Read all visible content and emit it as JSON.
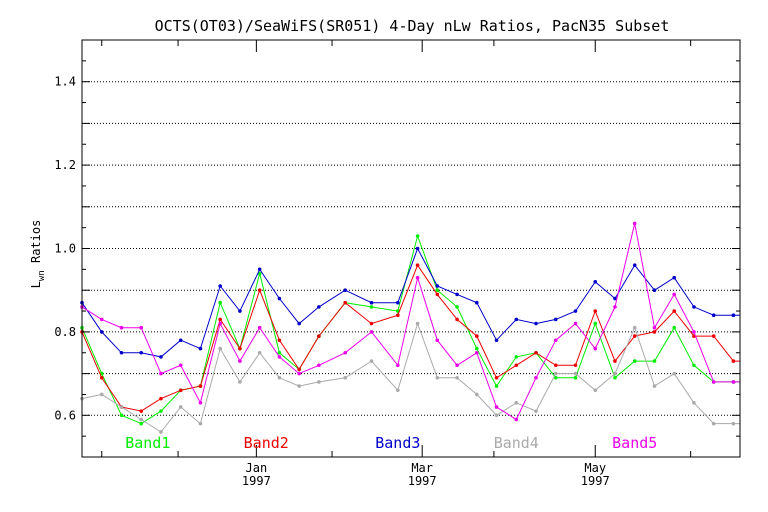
{
  "chart_data": {
    "type": "line",
    "title": "OCTS(OT03)/SeaWiFS(SR051) 4-Day nLw Ratios, PacN35 Subset",
    "ylabel_main": "L",
    "ylabel_sub": "wn",
    "ylabel_rest": " Ratios",
    "xlim": [
      0,
      100
    ],
    "ylim": [
      0.5,
      1.5
    ],
    "yticks": [
      {
        "v": 0.6,
        "label": "0.6"
      },
      {
        "v": 0.8,
        "label": "0.8"
      },
      {
        "v": 1.0,
        "label": "1.0"
      },
      {
        "v": 1.2,
        "label": "1.2"
      },
      {
        "v": 1.4,
        "label": "1.4"
      }
    ],
    "ygrid": [
      0.6,
      0.7,
      0.8,
      0.9,
      1.0,
      1.1,
      1.2,
      1.3,
      1.4
    ],
    "xmajor": [
      {
        "v": 26.5,
        "month": "Jan",
        "year": "1997"
      },
      {
        "v": 51.7,
        "month": "Mar",
        "year": "1997"
      },
      {
        "v": 78.0,
        "month": "May",
        "year": "1997"
      }
    ],
    "xminor": [
      3.0,
      14.6,
      38.0,
      62.6,
      92.5
    ],
    "x": [
      0,
      3,
      6,
      9,
      12,
      15,
      18,
      21,
      24,
      27,
      30,
      33,
      36,
      40,
      44,
      48,
      51,
      54,
      57,
      60,
      63,
      66,
      69,
      72,
      75,
      78,
      81,
      84,
      87,
      90,
      93,
      96,
      99,
      100
    ],
    "series": [
      {
        "name": "Band1",
        "color": "#00ee00",
        "values": [
          0.81,
          0.7,
          0.6,
          0.58,
          0.61,
          0.66,
          0.67,
          0.87,
          0.76,
          0.94,
          0.75,
          0.71,
          0.79,
          0.87,
          0.86,
          0.85,
          1.03,
          0.9,
          0.86,
          0.76,
          0.67,
          0.74,
          0.75,
          0.69,
          0.69,
          0.82,
          0.69,
          0.73,
          0.73,
          0.81,
          0.72,
          0.68,
          0.68,
          0.68
        ]
      },
      {
        "name": "Band2",
        "color": "#ee0000",
        "values": [
          0.8,
          0.69,
          0.62,
          0.61,
          0.64,
          0.66,
          0.67,
          0.83,
          0.76,
          0.9,
          0.78,
          0.71,
          0.79,
          0.87,
          0.82,
          0.84,
          0.96,
          0.89,
          0.83,
          0.79,
          0.69,
          0.72,
          0.75,
          0.72,
          0.72,
          0.85,
          0.73,
          0.79,
          0.8,
          0.85,
          0.79,
          0.79,
          0.73,
          0.73
        ]
      },
      {
        "name": "Band3",
        "color": "#0000cc",
        "values": [
          0.87,
          0.8,
          0.75,
          0.75,
          0.74,
          0.78,
          0.76,
          0.91,
          0.85,
          0.95,
          0.88,
          0.82,
          0.86,
          0.9,
          0.87,
          0.87,
          1.0,
          0.91,
          0.89,
          0.87,
          0.78,
          0.83,
          0.82,
          0.83,
          0.85,
          0.92,
          0.88,
          0.96,
          0.9,
          0.93,
          0.86,
          0.84,
          0.84,
          0.84
        ]
      },
      {
        "name": "Band4",
        "color": "#aaaaaa",
        "values": [
          0.64,
          0.65,
          0.62,
          0.59,
          0.56,
          0.62,
          0.58,
          0.76,
          0.68,
          0.75,
          0.69,
          0.67,
          0.68,
          0.69,
          0.73,
          0.66,
          0.82,
          0.69,
          0.69,
          0.65,
          0.6,
          0.63,
          0.61,
          0.7,
          0.7,
          0.66,
          0.7,
          0.81,
          0.67,
          0.7,
          0.63,
          0.58,
          0.58,
          0.58
        ]
      },
      {
        "name": "Band5",
        "color": "#ee00ee",
        "values": [
          0.86,
          0.83,
          0.81,
          0.81,
          0.7,
          0.72,
          0.63,
          0.82,
          0.73,
          0.81,
          0.74,
          0.7,
          0.72,
          0.75,
          0.8,
          0.72,
          0.93,
          0.78,
          0.72,
          0.75,
          0.62,
          0.59,
          0.69,
          0.78,
          0.82,
          0.76,
          0.86,
          1.06,
          0.81,
          0.89,
          0.8,
          0.68,
          0.68,
          0.68
        ]
      }
    ],
    "legend": [
      {
        "name": "Band1",
        "color": "#00ee00",
        "x": 10
      },
      {
        "name": "Band2",
        "color": "#ee0000",
        "x": 28
      },
      {
        "name": "Band3",
        "color": "#0000cc",
        "x": 48
      },
      {
        "name": "Band4",
        "color": "#aaaaaa",
        "x": 66
      },
      {
        "name": "Band5",
        "color": "#ee00ee",
        "x": 84
      }
    ]
  }
}
